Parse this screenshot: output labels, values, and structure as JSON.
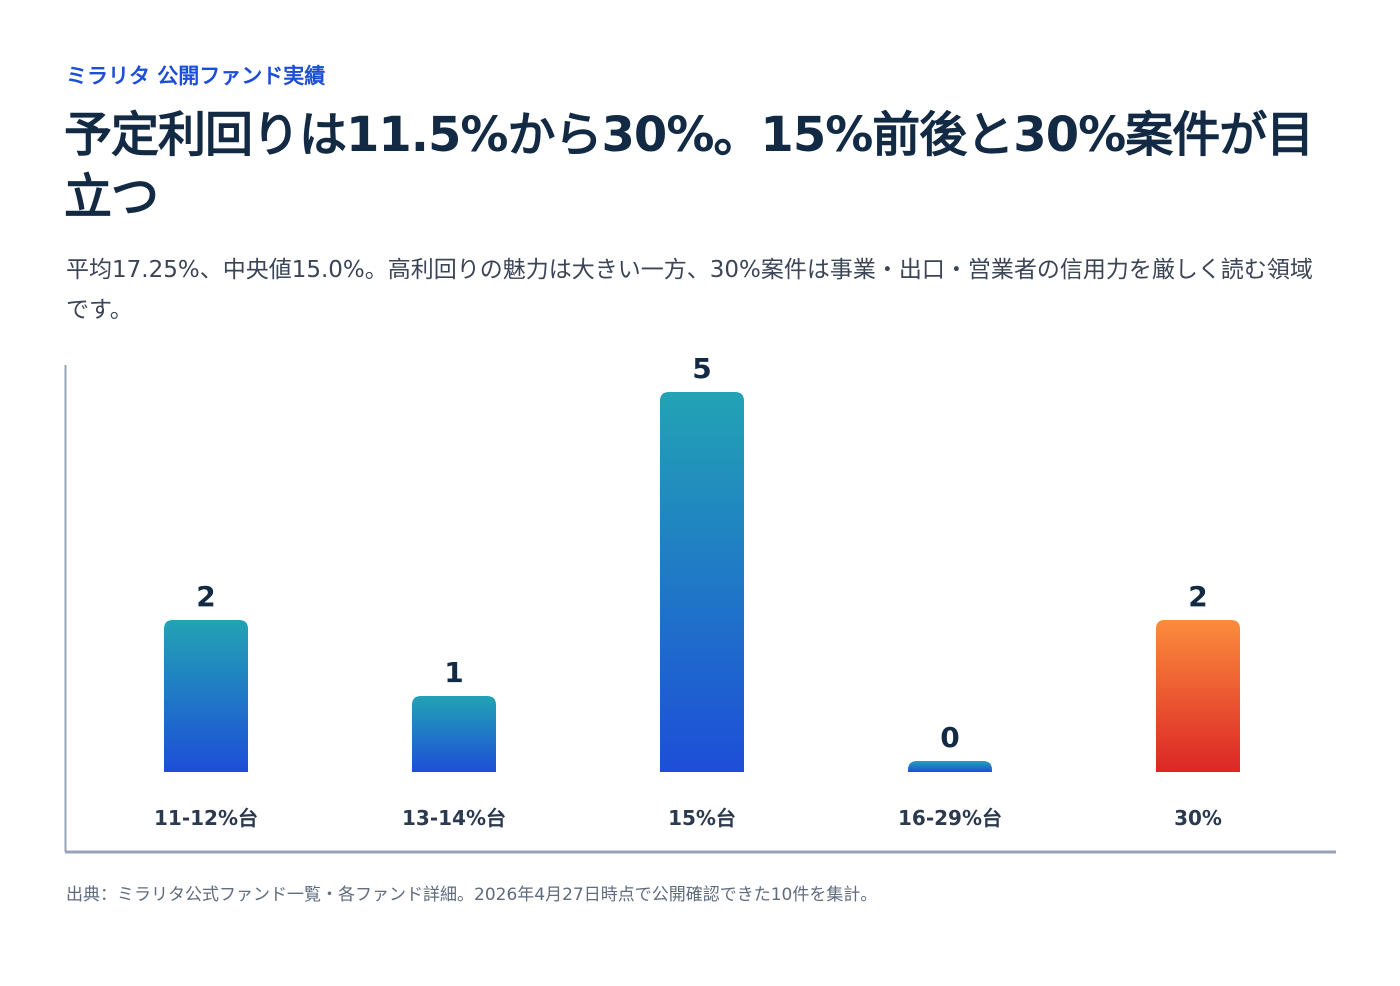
{
  "eyebrow": "ミラリタ 公開ファンド実績",
  "title": "予定利回りは11.5%から30%。15%前後と30%案件が目立つ",
  "subtitle": "平均17.25%、中央値15.0%。高利回りの魅力は大きい一方、30%案件は事業・出口・営業者の信用力を厳しく読む領域です。",
  "source": "出典：ミラリタ公式ファンド一覧・各ファンド詳細。2026年4月27日時点で公開確認できた10件を集計。",
  "chart_data": {
    "type": "bar",
    "categories": [
      "11-12%台",
      "13-14%台",
      "15%台",
      "16-29%台",
      "30%"
    ],
    "values": [
      2,
      1,
      5,
      0,
      2
    ],
    "data_labels": [
      "2",
      "1",
      "5",
      "0",
      "2"
    ],
    "xlabel": "",
    "ylabel": "",
    "ylim": [
      0,
      5
    ],
    "grid": false,
    "legend": "none",
    "colors": {
      "default_top": "#22a3b4",
      "default_bottom": "#1d4ed8",
      "highlight_top": "#fb8c3c",
      "highlight_bottom": "#dc2626",
      "highlight_category": "30%",
      "axis": "#97a3b6",
      "label": "#132a44"
    }
  }
}
